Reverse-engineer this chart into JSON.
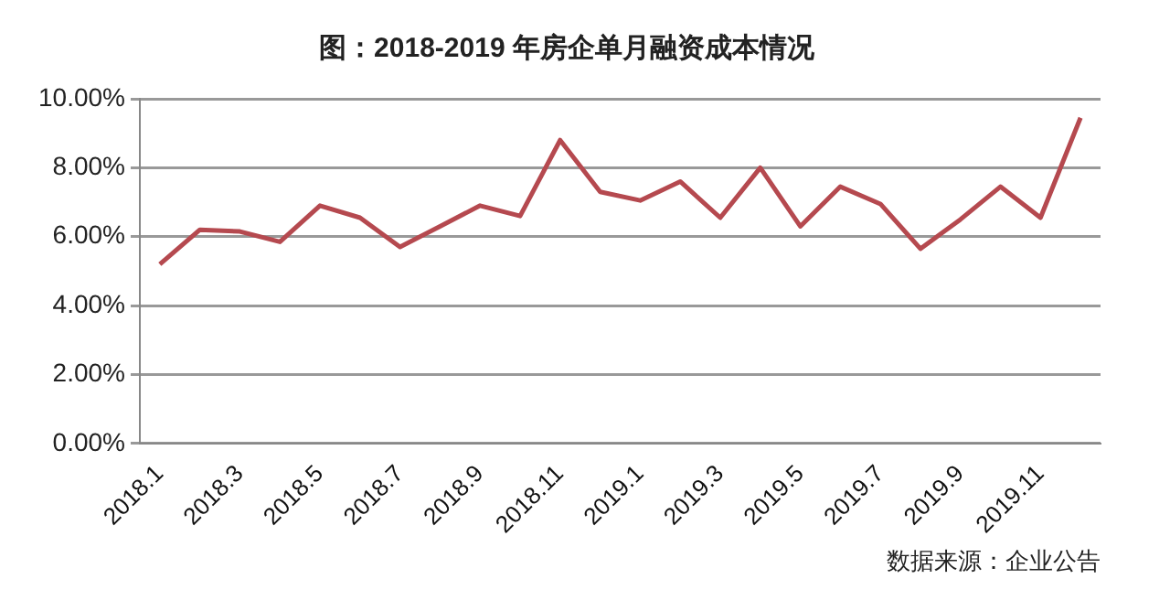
{
  "chart_data": {
    "type": "line",
    "title": "图：2018-2019 年房企单月融资成本情况",
    "categories": [
      "2018.1",
      null,
      "2018.3",
      null,
      "2018.5",
      null,
      "2018.7",
      null,
      "2018.9",
      null,
      "2018.11",
      null,
      "2019.1",
      null,
      "2019.3",
      null,
      "2019.5",
      null,
      "2019.7",
      null,
      "2019.9",
      null,
      "2019.11",
      null
    ],
    "series": [
      {
        "color": "#b5494f",
        "values": [
          5.2,
          6.2,
          6.15,
          5.85,
          6.9,
          6.55,
          5.7,
          6.3,
          6.9,
          6.6,
          8.8,
          7.3,
          7.05,
          7.6,
          6.55,
          8.0,
          6.3,
          7.45,
          6.95,
          5.65,
          6.5,
          7.45,
          6.55,
          9.45
        ]
      }
    ],
    "ylim": [
      0,
      10
    ],
    "yticks": [
      {
        "value": 0,
        "label": "0.00%"
      },
      {
        "value": 2,
        "label": "2.00%"
      },
      {
        "value": 4,
        "label": "4.00%"
      },
      {
        "value": 6,
        "label": "6.00%"
      },
      {
        "value": 8,
        "label": "8.00%"
      },
      {
        "value": 10,
        "label": "10.00%"
      }
    ],
    "grid": "y",
    "legend": false,
    "marker": "none",
    "line_style": "solid",
    "annotations": [
      "数据来源：企业公告"
    ]
  }
}
